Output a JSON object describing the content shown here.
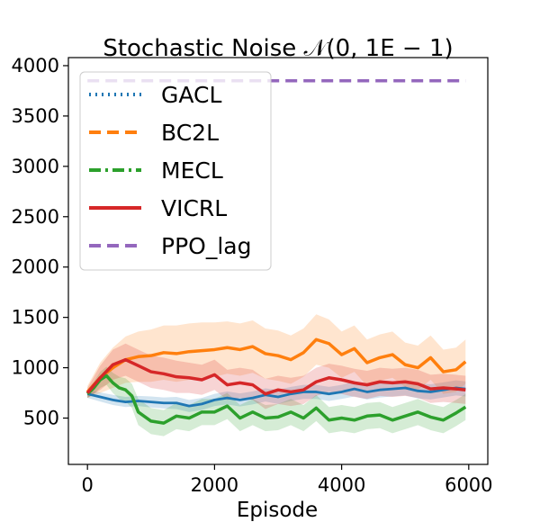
{
  "chart_data": {
    "type": "line",
    "title": "Stochastic Noise 𝒩(0, 1E − 1)",
    "xlabel": "Episode",
    "ylabel": "",
    "xlim": [
      -300,
      6300
    ],
    "ylim": [
      40,
      4080
    ],
    "x_ticks": [
      0,
      2000,
      4000,
      6000
    ],
    "y_ticks": [
      500,
      1000,
      1500,
      2000,
      2500,
      3000,
      3500,
      4000
    ],
    "grid": false,
    "legend_position": "top-left",
    "series": [
      {
        "name": "GACL",
        "color": "#1f77b4",
        "style": "dotted",
        "x": [
          0,
          200,
          400,
          600,
          800,
          1000,
          1200,
          1400,
          1600,
          1800,
          2000,
          2200,
          2400,
          2600,
          2800,
          3000,
          3200,
          3400,
          3600,
          3800,
          4000,
          4200,
          4400,
          4600,
          4800,
          5000,
          5200,
          5400,
          5600,
          5800,
          5950
        ],
        "y": [
          740,
          710,
          680,
          660,
          670,
          660,
          650,
          650,
          620,
          640,
          680,
          700,
          680,
          700,
          730,
          710,
          740,
          760,
          760,
          740,
          760,
          790,
          760,
          780,
          790,
          800,
          770,
          760,
          780,
          800,
          790
        ],
        "band": [
          40,
          45,
          50,
          50,
          50,
          55,
          55,
          60,
          60,
          60,
          60,
          65,
          65,
          65,
          65,
          70,
          70,
          70,
          70,
          70,
          70,
          75,
          75,
          75,
          75,
          75,
          75,
          75,
          75,
          75,
          75
        ]
      },
      {
        "name": "BC2L",
        "color": "#ff7f0e",
        "style": "dashed",
        "x": [
          0,
          200,
          400,
          600,
          800,
          1000,
          1200,
          1400,
          1600,
          1800,
          2000,
          2200,
          2400,
          2600,
          2800,
          3000,
          3200,
          3400,
          3600,
          3800,
          4000,
          4200,
          4400,
          4600,
          4800,
          5000,
          5200,
          5400,
          5600,
          5800,
          5950
        ],
        "y": [
          760,
          900,
          1000,
          1080,
          1110,
          1120,
          1150,
          1140,
          1160,
          1170,
          1180,
          1200,
          1180,
          1210,
          1140,
          1120,
          1080,
          1150,
          1280,
          1240,
          1130,
          1190,
          1050,
          1100,
          1130,
          1030,
          1000,
          1100,
          960,
          980,
          1060
        ],
        "band": [
          60,
          150,
          200,
          230,
          250,
          260,
          270,
          280,
          280,
          280,
          270,
          260,
          260,
          260,
          250,
          250,
          240,
          240,
          250,
          240,
          230,
          230,
          230,
          230,
          230,
          220,
          220,
          220,
          220,
          220,
          220
        ]
      },
      {
        "name": "MECL",
        "color": "#2ca02c",
        "style": "dashdot",
        "x": [
          0,
          100,
          200,
          300,
          400,
          500,
          600,
          700,
          800,
          1000,
          1200,
          1400,
          1600,
          1800,
          2000,
          2200,
          2400,
          2600,
          2800,
          3000,
          3200,
          3400,
          3600,
          3800,
          4000,
          4200,
          4400,
          4600,
          4800,
          5000,
          5200,
          5400,
          5600,
          5800,
          5950
        ],
        "y": [
          740,
          800,
          880,
          920,
          850,
          800,
          780,
          720,
          560,
          470,
          450,
          520,
          500,
          560,
          560,
          620,
          500,
          560,
          500,
          510,
          560,
          500,
          600,
          480,
          500,
          480,
          520,
          530,
          480,
          520,
          560,
          510,
          480,
          550,
          610
        ],
        "band": [
          40,
          60,
          80,
          90,
          100,
          110,
          115,
          120,
          130,
          130,
          130,
          130,
          130,
          130,
          130,
          130,
          130,
          130,
          130,
          130,
          130,
          130,
          130,
          130,
          130,
          130,
          130,
          130,
          130,
          130,
          130,
          130,
          130,
          130,
          130
        ]
      },
      {
        "name": "VICRL",
        "color": "#d62728",
        "style": "solid",
        "x": [
          0,
          200,
          400,
          600,
          800,
          1000,
          1200,
          1400,
          1600,
          1800,
          2000,
          2200,
          2400,
          2600,
          2800,
          3000,
          3200,
          3400,
          3600,
          3800,
          4000,
          4200,
          4400,
          4600,
          4800,
          5000,
          5200,
          5400,
          5600,
          5800,
          5950
        ],
        "y": [
          750,
          900,
          1030,
          1080,
          1020,
          960,
          940,
          910,
          900,
          880,
          930,
          830,
          850,
          830,
          740,
          780,
          760,
          780,
          860,
          900,
          880,
          850,
          830,
          860,
          850,
          860,
          840,
          790,
          800,
          790,
          780
        ],
        "band": [
          50,
          120,
          150,
          160,
          160,
          160,
          160,
          160,
          150,
          150,
          150,
          150,
          150,
          150,
          150,
          140,
          140,
          140,
          140,
          140,
          140,
          140,
          140,
          140,
          140,
          140,
          140,
          140,
          140,
          140,
          140
        ]
      },
      {
        "name": "PPO_lag",
        "color": "#9467bd",
        "style": "dashed",
        "x": [
          0,
          5950
        ],
        "y": [
          3850,
          3850
        ],
        "band": [
          0,
          0
        ]
      }
    ]
  }
}
